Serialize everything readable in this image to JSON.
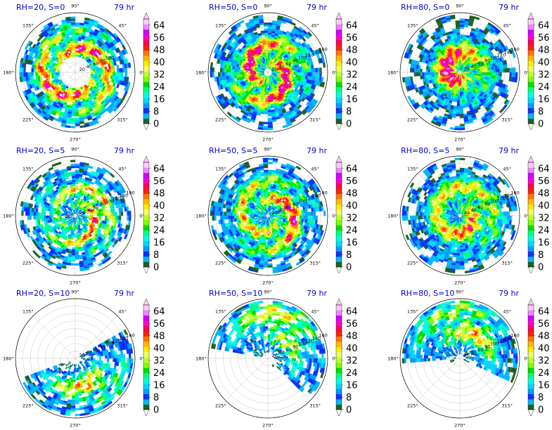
{
  "chart_data": [
    {
      "type": "polar-contourf",
      "title_left": "RH=20, S=0",
      "title_right": "79 hr",
      "azimuth_labels": [
        "90°",
        "45°",
        "0°",
        "315°",
        "270°",
        "225°",
        "180°",
        "135°"
      ],
      "radial_labels": [
        "20",
        "40",
        "60",
        "80",
        "100"
      ],
      "colorbar_ticks": [
        "64",
        "56",
        "48",
        "40",
        "32",
        "24",
        "16",
        "8",
        "0"
      ],
      "vmin": 0,
      "vmax": 68,
      "pattern": {
        "rin": 0.26,
        "rout": 0.93,
        "peak": 0.45,
        "amax": 56,
        "spiral": 1.6,
        "arms": 2,
        "holes": 0.2,
        "bias": 0,
        "bw": 0.5,
        "seed": 1
      }
    },
    {
      "type": "polar-contourf",
      "title_left": "RH=50, S=0",
      "title_right": "79 hr",
      "azimuth_labels": [
        "90°",
        "45°",
        "0°",
        "315°",
        "270°",
        "225°",
        "180°",
        "135°"
      ],
      "radial_labels": [
        "20",
        "40",
        "60",
        "80",
        "100",
        "120",
        "140",
        "160"
      ],
      "colorbar_ticks": [
        "64",
        "56",
        "48",
        "40",
        "32",
        "24",
        "16",
        "8",
        "0"
      ],
      "vmin": 0,
      "vmax": 68,
      "pattern": {
        "rin": 0.07,
        "rout": 0.97,
        "peak": 0.35,
        "amax": 60,
        "spiral": 1.4,
        "arms": 2,
        "holes": 0.05,
        "bias": 0,
        "bw": 0.5,
        "seed": 2
      }
    },
    {
      "type": "polar-contourf",
      "title_left": "RH=80, S=0",
      "title_right": "79 hr",
      "azimuth_labels": [
        "90°",
        "45°",
        "0°",
        "315°",
        "270°",
        "225°",
        "180°",
        "135°"
      ],
      "radial_labels": [
        "20",
        "40",
        "60",
        "80",
        "100",
        "120",
        "140",
        "160"
      ],
      "colorbar_ticks": [
        "64",
        "56",
        "48",
        "40",
        "32",
        "24",
        "16",
        "8",
        "0"
      ],
      "vmin": 0,
      "vmax": 68,
      "pattern": {
        "rin": 0.04,
        "rout": 0.98,
        "peak": 0.22,
        "amax": 62,
        "spiral": 0.8,
        "arms": 1,
        "holes": 0.0,
        "bias": 0,
        "bw": 0.5,
        "seed": 3
      }
    },
    {
      "type": "polar-contourf",
      "title_left": "RH=20, S=5",
      "title_right": "79 hr",
      "azimuth_labels": [
        "90°",
        "45°",
        "0°",
        "315°",
        "270°",
        "225°",
        "180°",
        "135°"
      ],
      "radial_labels": [
        "20",
        "40",
        "60",
        "80",
        "100",
        "120",
        "140",
        "160"
      ],
      "colorbar_ticks": [
        "64",
        "56",
        "48",
        "40",
        "32",
        "24",
        "16",
        "8",
        "0"
      ],
      "vmin": 0,
      "vmax": 68,
      "pattern": {
        "rin": 0.04,
        "rout": 0.93,
        "peak": 0.4,
        "amax": 56,
        "spiral": 2.0,
        "arms": 2,
        "holes": 0.35,
        "bias": 0.45,
        "bw": 0.6,
        "seed": 4
      }
    },
    {
      "type": "polar-contourf",
      "title_left": "RH=50, S=5",
      "title_right": "79 hr",
      "azimuth_labels": [
        "90°",
        "45°",
        "0°",
        "315°",
        "270°",
        "225°",
        "180°",
        "135°"
      ],
      "radial_labels": [
        "20",
        "40",
        "60",
        "80",
        "100",
        "120",
        "140",
        "160"
      ],
      "colorbar_ticks": [
        "64",
        "56",
        "48",
        "40",
        "32",
        "24",
        "16",
        "8",
        "0"
      ],
      "vmin": 0,
      "vmax": 68,
      "pattern": {
        "rin": 0.05,
        "rout": 0.98,
        "peak": 0.4,
        "amax": 58,
        "spiral": 1.6,
        "arms": 2,
        "holes": 0.15,
        "bias": 0.25,
        "bw": 0.6,
        "seed": 5
      }
    },
    {
      "type": "polar-contourf",
      "title_left": "RH=80, S=5",
      "title_right": "79 hr",
      "azimuth_labels": [
        "90°",
        "45°",
        "0°",
        "315°",
        "270°",
        "225°",
        "180°",
        "135°"
      ],
      "radial_labels": [
        "20",
        "40",
        "60",
        "80",
        "100",
        "120",
        "140",
        "160"
      ],
      "colorbar_ticks": [
        "64",
        "56",
        "48",
        "40",
        "32",
        "24",
        "16",
        "8",
        "0"
      ],
      "vmin": 0,
      "vmax": 68,
      "pattern": {
        "rin": 0.04,
        "rout": 0.98,
        "peak": 0.35,
        "amax": 62,
        "spiral": 1.2,
        "arms": 1,
        "holes": 0.1,
        "bias": 0.35,
        "bw": 0.6,
        "seed": 6
      }
    },
    {
      "type": "polar-contourf",
      "title_left": "RH=20, S=10",
      "title_right": "79 hr",
      "azimuth_labels": [
        "90°",
        "45°",
        "0°",
        "315°",
        "270°",
        "225°",
        "180°",
        "135°"
      ],
      "radial_labels": [
        "20",
        "40",
        "60",
        "80",
        "100",
        "120",
        "140",
        "160"
      ],
      "colorbar_ticks": [
        "64",
        "56",
        "48",
        "40",
        "32",
        "24",
        "16",
        "8",
        "0"
      ],
      "vmin": 0,
      "vmax": 68,
      "pattern": {
        "rin": 0.1,
        "rout": 0.98,
        "peak": 0.6,
        "amax": 56,
        "spiral": 1.0,
        "arms": 1,
        "holes": 0.45,
        "bias": 1.0,
        "bw": 0.45,
        "center": -0.35,
        "seed": 7
      }
    },
    {
      "type": "polar-contourf",
      "title_left": "RH=50, S=10",
      "title_right": "79 hr",
      "azimuth_labels": [
        "90°",
        "45°",
        "0°",
        "315°",
        "270°",
        "225°",
        "180°",
        "135°"
      ],
      "radial_labels": [
        "20",
        "40",
        "60",
        "80",
        "100",
        "120",
        "140",
        "160"
      ],
      "colorbar_ticks": [
        "64",
        "56",
        "48",
        "40",
        "32",
        "24",
        "16",
        "8",
        "0"
      ],
      "vmin": 0,
      "vmax": 68,
      "pattern": {
        "rin": 0.1,
        "rout": 0.98,
        "peak": 0.6,
        "amax": 60,
        "spiral": 1.0,
        "arms": 1,
        "holes": 0.45,
        "bias": 1.0,
        "bw": 0.5,
        "center": 0.35,
        "seed": 8
      }
    },
    {
      "type": "polar-contourf",
      "title_left": "RH=80, S=10",
      "title_right": "79 hr",
      "azimuth_labels": [
        "90°",
        "45°",
        "0°",
        "315°",
        "270°",
        "225°",
        "180°",
        "135°"
      ],
      "radial_labels": [
        "20",
        "40",
        "60",
        "80",
        "100",
        "120",
        "140",
        "160"
      ],
      "colorbar_ticks": [
        "64",
        "56",
        "48",
        "40",
        "32",
        "24",
        "16",
        "8",
        "0"
      ],
      "vmin": 0,
      "vmax": 68,
      "pattern": {
        "rin": 0.08,
        "rout": 0.98,
        "peak": 0.6,
        "amax": 62,
        "spiral": 1.0,
        "arms": 1,
        "holes": 0.3,
        "bias": 1.0,
        "bw": 0.5,
        "center": 0.45,
        "seed": 9
      }
    }
  ],
  "colormap": [
    "#0a1a55",
    "#1f6020",
    "#00b7ff",
    "#0033ff",
    "#00a0ff",
    "#00d8ff",
    "#00ffe0",
    "#00ff80",
    "#00dd00",
    "#80ff00",
    "#bbff33",
    "#eeff66",
    "#ffee00",
    "#ffbb00",
    "#ff7700",
    "#ff2200",
    "#ff0055",
    "#ff00cc",
    "#d000ff",
    "#ee88ff",
    "#ffccff"
  ],
  "level_step": 4
}
